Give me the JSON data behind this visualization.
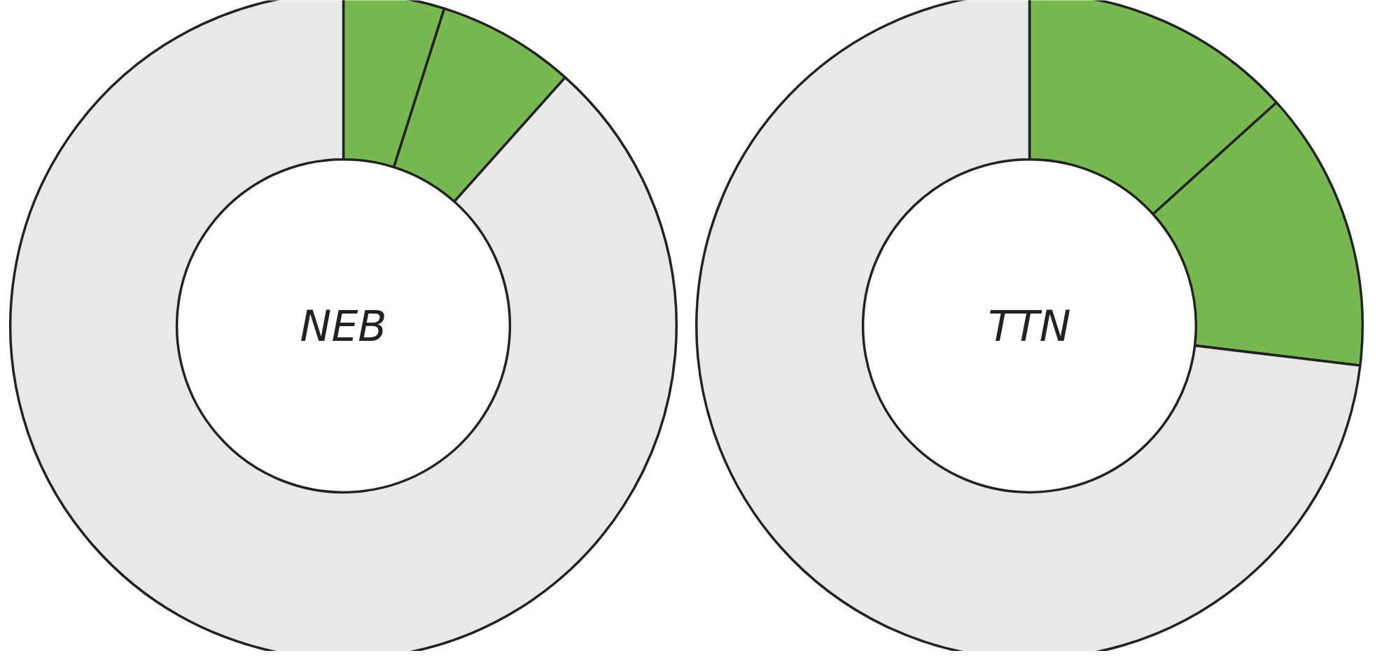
{
  "chart_data": [
    {
      "type": "donut",
      "title": "NEB",
      "categories": [
        null,
        null,
        null
      ],
      "values": [
        4.9,
        6.7,
        88.4
      ],
      "colors": [
        "#77b850",
        "#77b850",
        "#e8e8e8"
      ]
    },
    {
      "type": "donut",
      "title": "TTN",
      "categories": [
        null,
        null,
        null
      ],
      "values": [
        13.3,
        13.6,
        73.1
      ],
      "colors": [
        "#77b850",
        "#77b850",
        "#e8e8e8"
      ]
    }
  ]
}
